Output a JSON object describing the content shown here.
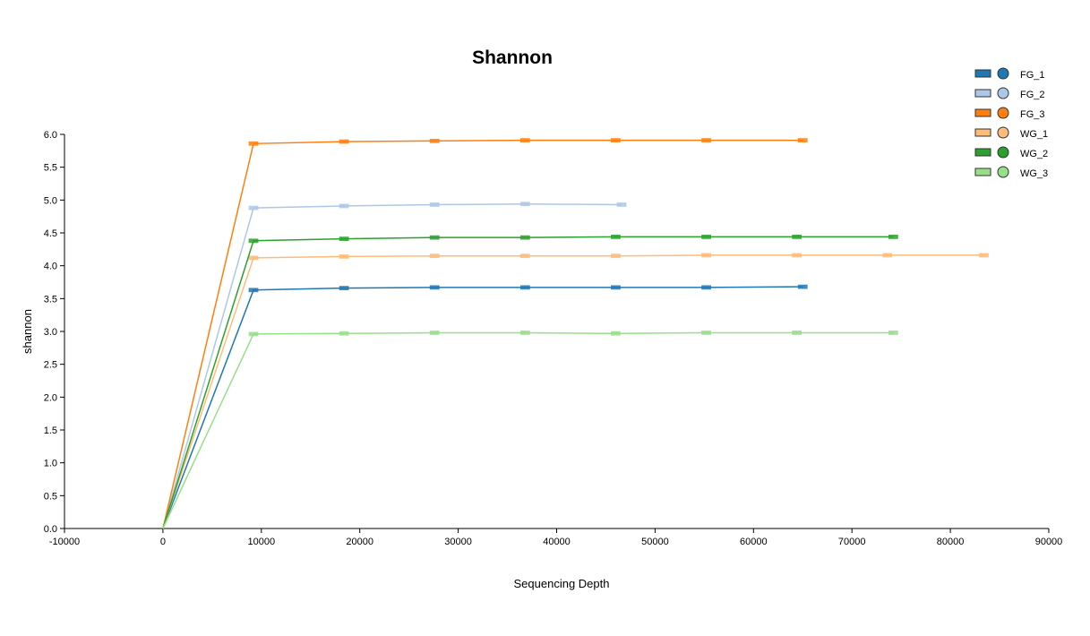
{
  "chart_data": {
    "type": "line",
    "title": "Shannon",
    "xlabel": "Sequencing Depth",
    "ylabel": "shannon",
    "xlim": [
      -10000,
      90000
    ],
    "ylim": [
      0,
      6.0
    ],
    "x_ticks": [
      -10000,
      0,
      10000,
      20000,
      30000,
      40000,
      50000,
      60000,
      70000,
      80000,
      90000
    ],
    "x_tick_labels": [
      "-10000",
      "0",
      "10000",
      "20000",
      "30000",
      "40000",
      "50000",
      "60000",
      "70000",
      "80000",
      "90000"
    ],
    "y_ticks": [
      0,
      0.5,
      1.0,
      1.5,
      2.0,
      2.5,
      3.0,
      3.5,
      4.0,
      4.5,
      5.0,
      5.5,
      6.0
    ],
    "y_tick_labels": [
      "0.0",
      "0.5",
      "1.0",
      "1.5",
      "2.0",
      "2.5",
      "3.0",
      "3.5",
      "4.0",
      "4.5",
      "5.0",
      "5.5",
      "6.0"
    ],
    "grid": false,
    "legend_position": "top-right",
    "series": [
      {
        "name": "FG_1",
        "color": "#1f77b4",
        "x": [
          0,
          9200,
          18400,
          27600,
          36800,
          46000,
          55200,
          65000
        ],
        "y": [
          0,
          3.63,
          3.66,
          3.67,
          3.67,
          3.67,
          3.67,
          3.68
        ]
      },
      {
        "name": "FG_2",
        "color": "#aec7e8",
        "x": [
          0,
          9200,
          18400,
          27600,
          36800,
          46600
        ],
        "y": [
          0,
          4.88,
          4.91,
          4.93,
          4.94,
          4.93
        ]
      },
      {
        "name": "FG_3",
        "color": "#ff7f0e",
        "x": [
          0,
          9200,
          18400,
          27600,
          36800,
          46000,
          55200,
          65000
        ],
        "y": [
          0,
          5.86,
          5.89,
          5.9,
          5.91,
          5.91,
          5.91,
          5.91
        ]
      },
      {
        "name": "WG_1",
        "color": "#ffbb78",
        "x": [
          0,
          9200,
          18400,
          27600,
          36800,
          46000,
          55200,
          64400,
          73600,
          83400
        ],
        "y": [
          0,
          4.12,
          4.14,
          4.15,
          4.15,
          4.15,
          4.16,
          4.16,
          4.16,
          4.16
        ]
      },
      {
        "name": "WG_2",
        "color": "#2ca02c",
        "x": [
          0,
          9200,
          18400,
          27600,
          36800,
          46000,
          55200,
          64400,
          74200
        ],
        "y": [
          0,
          4.38,
          4.41,
          4.43,
          4.43,
          4.44,
          4.44,
          4.44,
          4.44
        ]
      },
      {
        "name": "WG_3",
        "color": "#98df8a",
        "x": [
          0,
          9200,
          18400,
          27600,
          36800,
          46000,
          55200,
          64400,
          74200
        ],
        "y": [
          0,
          2.96,
          2.97,
          2.98,
          2.98,
          2.97,
          2.98,
          2.98,
          2.98
        ]
      }
    ]
  }
}
